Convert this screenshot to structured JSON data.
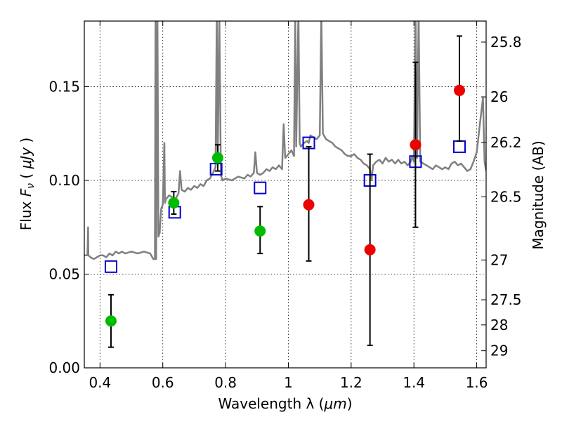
{
  "chart_data": {
    "type": "scatter",
    "xlabel_text": "Wavelength  λ (",
    "xlabel_unit": "μm",
    "xlabel_close": ")",
    "ylabel_text": "Flux  ",
    "ylabel_symbol": "F",
    "ylabel_sub": "ν",
    "ylabel_paren_open": " (  ",
    "ylabel_unit": "μJy",
    "ylabel_paren_close": " )",
    "y2label": "Magnitude (AB)",
    "xlim": [
      0.35,
      1.63
    ],
    "ylim": [
      0.0,
      0.185
    ],
    "grid": true,
    "x_ticks": [
      0.4,
      0.6,
      0.8,
      1.0,
      1.2,
      1.4,
      1.6
    ],
    "x_tick_labels": [
      "0.4",
      "0.6",
      "0.8",
      "1",
      "1.2",
      "1.4",
      "1.6"
    ],
    "y_ticks": [
      0.0,
      0.05,
      0.1,
      0.15
    ],
    "y_tick_labels": [
      "0.00",
      "0.05",
      "0.10",
      "0.15"
    ],
    "mag_ticks": [
      25.8,
      26,
      26.2,
      26.5,
      27,
      27.5,
      28,
      29
    ],
    "mag_tick_labels": [
      "25.8",
      "26",
      "26.2",
      "26.5",
      "27",
      "27.5",
      "28",
      "29"
    ],
    "spectrum_color": "#808080",
    "spectrum": [
      [
        0.35,
        0.06
      ],
      [
        0.36,
        0.06
      ],
      [
        0.362,
        0.075
      ],
      [
        0.363,
        0.06
      ],
      [
        0.37,
        0.059
      ],
      [
        0.38,
        0.058
      ],
      [
        0.39,
        0.059
      ],
      [
        0.4,
        0.06
      ],
      [
        0.41,
        0.06
      ],
      [
        0.42,
        0.059
      ],
      [
        0.43,
        0.061
      ],
      [
        0.44,
        0.06
      ],
      [
        0.45,
        0.062
      ],
      [
        0.46,
        0.061
      ],
      [
        0.47,
        0.062
      ],
      [
        0.48,
        0.061
      ],
      [
        0.5,
        0.062
      ],
      [
        0.52,
        0.061
      ],
      [
        0.54,
        0.062
      ],
      [
        0.56,
        0.061
      ],
      [
        0.57,
        0.058
      ],
      [
        0.575,
        0.058
      ],
      [
        0.577,
        0.19
      ],
      [
        0.579,
        0.058
      ],
      [
        0.583,
        0.19
      ],
      [
        0.586,
        0.07
      ],
      [
        0.59,
        0.072
      ],
      [
        0.595,
        0.085
      ],
      [
        0.6,
        0.087
      ],
      [
        0.605,
        0.12
      ],
      [
        0.607,
        0.088
      ],
      [
        0.61,
        0.09
      ],
      [
        0.62,
        0.092
      ],
      [
        0.63,
        0.091
      ],
      [
        0.64,
        0.09
      ],
      [
        0.65,
        0.093
      ],
      [
        0.655,
        0.105
      ],
      [
        0.66,
        0.095
      ],
      [
        0.67,
        0.094
      ],
      [
        0.68,
        0.096
      ],
      [
        0.69,
        0.095
      ],
      [
        0.7,
        0.097
      ],
      [
        0.71,
        0.096
      ],
      [
        0.72,
        0.098
      ],
      [
        0.73,
        0.097
      ],
      [
        0.74,
        0.1
      ],
      [
        0.75,
        0.101
      ],
      [
        0.76,
        0.104
      ],
      [
        0.768,
        0.107
      ],
      [
        0.772,
        0.19
      ],
      [
        0.775,
        0.108
      ],
      [
        0.78,
        0.19
      ],
      [
        0.785,
        0.103
      ],
      [
        0.79,
        0.1
      ],
      [
        0.8,
        0.101
      ],
      [
        0.82,
        0.1
      ],
      [
        0.84,
        0.102
      ],
      [
        0.86,
        0.101
      ],
      [
        0.87,
        0.103
      ],
      [
        0.88,
        0.102
      ],
      [
        0.89,
        0.104
      ],
      [
        0.895,
        0.115
      ],
      [
        0.9,
        0.104
      ],
      [
        0.91,
        0.103
      ],
      [
        0.92,
        0.104
      ],
      [
        0.93,
        0.106
      ],
      [
        0.94,
        0.105
      ],
      [
        0.95,
        0.107
      ],
      [
        0.96,
        0.106
      ],
      [
        0.97,
        0.108
      ],
      [
        0.98,
        0.106
      ],
      [
        0.985,
        0.13
      ],
      [
        0.99,
        0.112
      ],
      [
        1.0,
        0.114
      ],
      [
        1.01,
        0.116
      ],
      [
        1.018,
        0.113
      ],
      [
        1.022,
        0.19
      ],
      [
        1.025,
        0.118
      ],
      [
        1.032,
        0.19
      ],
      [
        1.036,
        0.12
      ],
      [
        1.04,
        0.118
      ],
      [
        1.05,
        0.12
      ],
      [
        1.06,
        0.121
      ],
      [
        1.065,
        0.12
      ],
      [
        1.07,
        0.124
      ],
      [
        1.08,
        0.123
      ],
      [
        1.09,
        0.122
      ],
      [
        1.1,
        0.124
      ],
      [
        1.105,
        0.19
      ],
      [
        1.11,
        0.125
      ],
      [
        1.12,
        0.122
      ],
      [
        1.13,
        0.121
      ],
      [
        1.14,
        0.12
      ],
      [
        1.15,
        0.118
      ],
      [
        1.16,
        0.117
      ],
      [
        1.17,
        0.116
      ],
      [
        1.18,
        0.114
      ],
      [
        1.19,
        0.113
      ],
      [
        1.2,
        0.113
      ],
      [
        1.21,
        0.114
      ],
      [
        1.22,
        0.112
      ],
      [
        1.23,
        0.111
      ],
      [
        1.24,
        0.109
      ],
      [
        1.25,
        0.108
      ],
      [
        1.26,
        0.106
      ],
      [
        1.265,
        0.1
      ],
      [
        1.27,
        0.108
      ],
      [
        1.28,
        0.11
      ],
      [
        1.29,
        0.111
      ],
      [
        1.3,
        0.109
      ],
      [
        1.31,
        0.112
      ],
      [
        1.32,
        0.11
      ],
      [
        1.33,
        0.111
      ],
      [
        1.34,
        0.109
      ],
      [
        1.35,
        0.111
      ],
      [
        1.36,
        0.109
      ],
      [
        1.37,
        0.11
      ],
      [
        1.38,
        0.108
      ],
      [
        1.39,
        0.11
      ],
      [
        1.395,
        0.113
      ],
      [
        1.4,
        0.11
      ],
      [
        1.405,
        0.19
      ],
      [
        1.41,
        0.112
      ],
      [
        1.415,
        0.19
      ],
      [
        1.42,
        0.11
      ],
      [
        1.43,
        0.109
      ],
      [
        1.44,
        0.108
      ],
      [
        1.45,
        0.107
      ],
      [
        1.46,
        0.106
      ],
      [
        1.47,
        0.108
      ],
      [
        1.48,
        0.107
      ],
      [
        1.49,
        0.106
      ],
      [
        1.5,
        0.107
      ],
      [
        1.51,
        0.106
      ],
      [
        1.52,
        0.109
      ],
      [
        1.53,
        0.11
      ],
      [
        1.54,
        0.108
      ],
      [
        1.55,
        0.109
      ],
      [
        1.56,
        0.107
      ],
      [
        1.57,
        0.105
      ],
      [
        1.58,
        0.106
      ],
      [
        1.59,
        0.11
      ],
      [
        1.6,
        0.115
      ],
      [
        1.61,
        0.13
      ],
      [
        1.62,
        0.144
      ],
      [
        1.625,
        0.11
      ],
      [
        1.63,
        0.105
      ]
    ],
    "model_color": "#0000cc",
    "model_points": [
      {
        "x": 0.435,
        "y": 0.054
      },
      {
        "x": 0.638,
        "y": 0.083
      },
      {
        "x": 0.77,
        "y": 0.106
      },
      {
        "x": 0.91,
        "y": 0.096
      },
      {
        "x": 1.065,
        "y": 0.12
      },
      {
        "x": 1.26,
        "y": 0.1
      },
      {
        "x": 1.405,
        "y": 0.11
      },
      {
        "x": 1.545,
        "y": 0.118
      }
    ],
    "obs_points": [
      {
        "x": 0.435,
        "y": 0.025,
        "err_low": 0.011,
        "err_high": 0.039,
        "color": "#00bb00"
      },
      {
        "x": 0.635,
        "y": 0.088,
        "err_low": 0.082,
        "err_high": 0.094,
        "color": "#00bb00"
      },
      {
        "x": 0.775,
        "y": 0.112,
        "err_low": 0.105,
        "err_high": 0.119,
        "color": "#00bb00"
      },
      {
        "x": 0.91,
        "y": 0.073,
        "err_low": 0.061,
        "err_high": 0.086,
        "color": "#00bb00"
      },
      {
        "x": 1.065,
        "y": 0.087,
        "err_low": 0.057,
        "err_high": 0.118,
        "color": "#ee0000"
      },
      {
        "x": 1.26,
        "y": 0.063,
        "err_low": 0.012,
        "err_high": 0.114,
        "color": "#ee0000"
      },
      {
        "x": 1.405,
        "y": 0.119,
        "err_low": 0.075,
        "err_high": 0.163,
        "color": "#ee0000"
      },
      {
        "x": 1.545,
        "y": 0.148,
        "err_low": 0.121,
        "err_high": 0.177,
        "color": "#ee0000"
      }
    ]
  }
}
